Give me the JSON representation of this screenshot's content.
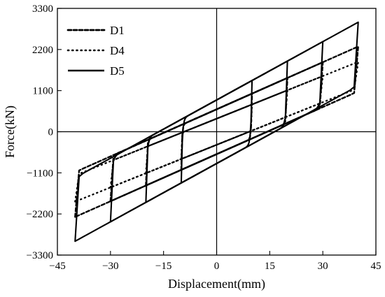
{
  "chart_data": {
    "type": "line",
    "xlabel": "Displacement(mm)",
    "ylabel": "Force(kN)",
    "xlim": [
      -45,
      45
    ],
    "ylim": [
      -3300,
      3300
    ],
    "x_ticks": [
      -45,
      -30,
      -15,
      0,
      15,
      30,
      45
    ],
    "x_tick_labels": [
      "−45",
      "−30",
      "−15",
      "0",
      "15",
      "30",
      "45"
    ],
    "y_ticks": [
      -3300,
      -2200,
      -1100,
      0,
      1100,
      2200,
      3300
    ],
    "y_tick_labels": [
      "−3300",
      "−2200",
      "−1100",
      "0",
      "1100",
      "2200",
      "3300"
    ],
    "grid": false,
    "zero_lines": true,
    "legend_position": "top-left",
    "series": [
      {
        "name": "D1",
        "style": "dashed",
        "color": "#000000",
        "k_elastic": 120,
        "k_post": 42,
        "yield_force": 600,
        "amplitudes_mm": [
          10,
          20,
          30,
          40
        ],
        "peak_forces_kN": [
          1020,
          1440,
          1860,
          2280
        ]
      },
      {
        "name": "D4",
        "style": "dotted",
        "color": "#000000",
        "k_elastic": 120,
        "k_post": 38,
        "yield_force": 350,
        "amplitudes_mm": [
          10,
          20,
          30,
          40
        ],
        "peak_forces_kN": [
          730,
          1110,
          1490,
          1870
        ]
      },
      {
        "name": "D5",
        "style": "solid",
        "color": "#000000",
        "k_elastic": 120,
        "k_post": 52,
        "yield_force": 850,
        "amplitudes_mm": [
          10,
          20,
          30,
          40
        ],
        "peak_forces_kN": [
          1370,
          1890,
          2410,
          2930
        ]
      }
    ]
  }
}
